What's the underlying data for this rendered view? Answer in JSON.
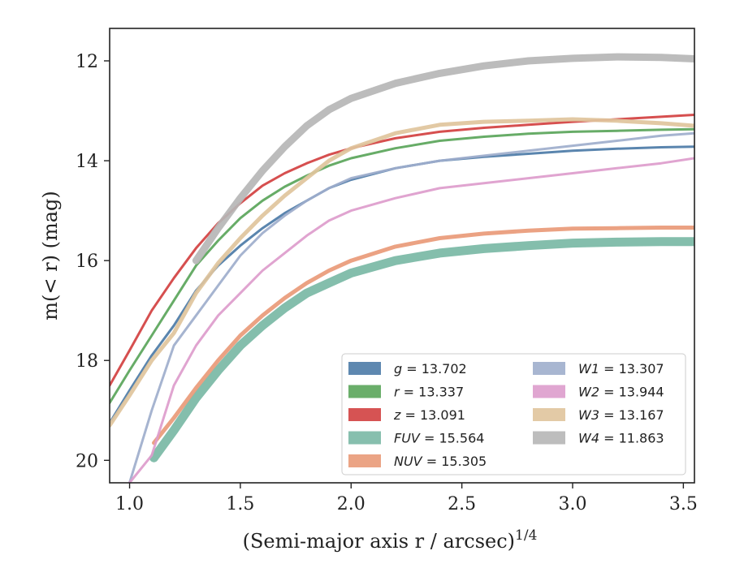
{
  "chart_data": {
    "type": "line",
    "xlabel": "(Semi-major axis r / arcsec)",
    "xlabel_power": "1/4",
    "ylabel": "m(< r) (mag)",
    "xlim": [
      0.91,
      3.55
    ],
    "ylim": [
      20.45,
      11.35
    ],
    "y_inverted": true,
    "x_ticks": [
      1.0,
      1.5,
      2.0,
      2.5,
      3.0,
      3.5
    ],
    "x_tick_labels": [
      "1.0",
      "1.5",
      "2.0",
      "2.5",
      "3.0",
      "3.5"
    ],
    "y_ticks": [
      12,
      14,
      16,
      18,
      20
    ],
    "y_tick_labels": [
      "12",
      "14",
      "16",
      "18",
      "20"
    ],
    "grid": false,
    "legend_position": "lower-right",
    "legend_columns": 2,
    "series": [
      {
        "name": "g",
        "label_value": "13.702",
        "color": "#4c7ba7",
        "width": 3,
        "x": [
          0.91,
          1.0,
          1.1,
          1.2,
          1.3,
          1.4,
          1.5,
          1.6,
          1.7,
          1.8,
          1.9,
          2.0,
          2.2,
          2.4,
          2.6,
          2.8,
          3.0,
          3.2,
          3.4,
          3.55
        ],
        "y": [
          19.25,
          18.6,
          17.9,
          17.3,
          16.6,
          16.1,
          15.7,
          15.35,
          15.05,
          14.8,
          14.55,
          14.38,
          14.15,
          14.0,
          13.92,
          13.86,
          13.8,
          13.76,
          13.73,
          13.72
        ]
      },
      {
        "name": "r",
        "label_value": "13.337",
        "color": "#5aa55a",
        "width": 3,
        "x": [
          0.91,
          1.0,
          1.1,
          1.2,
          1.3,
          1.4,
          1.5,
          1.6,
          1.7,
          1.8,
          1.9,
          2.0,
          2.2,
          2.4,
          2.6,
          2.8,
          3.0,
          3.2,
          3.4,
          3.55
        ],
        "y": [
          18.85,
          18.2,
          17.5,
          16.8,
          16.1,
          15.6,
          15.15,
          14.8,
          14.52,
          14.3,
          14.1,
          13.95,
          13.75,
          13.6,
          13.52,
          13.46,
          13.42,
          13.4,
          13.38,
          13.37
        ]
      },
      {
        "name": "z",
        "label_value": "13.091",
        "color": "#d24040",
        "width": 3,
        "x": [
          0.91,
          1.0,
          1.1,
          1.2,
          1.3,
          1.4,
          1.5,
          1.6,
          1.7,
          1.8,
          1.9,
          2.0,
          2.2,
          2.4,
          2.6,
          2.8,
          3.0,
          3.2,
          3.4,
          3.55
        ],
        "y": [
          18.5,
          17.8,
          17.0,
          16.35,
          15.75,
          15.25,
          14.85,
          14.5,
          14.25,
          14.05,
          13.88,
          13.75,
          13.55,
          13.42,
          13.34,
          13.28,
          13.22,
          13.17,
          13.12,
          13.08
        ]
      },
      {
        "name": "FUV",
        "label_value": "15.564",
        "color": "#7ab8a5",
        "width": 11,
        "x": [
          1.11,
          1.2,
          1.3,
          1.4,
          1.5,
          1.6,
          1.7,
          1.8,
          1.9,
          2.0,
          2.2,
          2.4,
          2.6,
          2.8,
          3.0,
          3.2,
          3.4,
          3.55
        ],
        "y": [
          19.95,
          19.4,
          18.75,
          18.2,
          17.7,
          17.3,
          16.95,
          16.65,
          16.45,
          16.25,
          16.0,
          15.85,
          15.76,
          15.7,
          15.65,
          15.63,
          15.62,
          15.62
        ]
      },
      {
        "name": "NUV",
        "label_value": "15.305",
        "color": "#e99a78",
        "width": 5,
        "x": [
          1.11,
          1.2,
          1.3,
          1.4,
          1.5,
          1.6,
          1.7,
          1.8,
          1.9,
          2.0,
          2.2,
          2.4,
          2.6,
          2.8,
          3.0,
          3.2,
          3.4,
          3.55
        ],
        "y": [
          19.65,
          19.15,
          18.55,
          18.0,
          17.5,
          17.1,
          16.75,
          16.45,
          16.2,
          16.0,
          15.72,
          15.55,
          15.46,
          15.4,
          15.36,
          15.35,
          15.34,
          15.34
        ]
      },
      {
        "name": "W1",
        "label_value": "13.307",
        "color": "#9eaecc",
        "width": 3,
        "x": [
          1.0,
          1.1,
          1.2,
          1.3,
          1.4,
          1.5,
          1.6,
          1.7,
          1.8,
          1.9,
          2.0,
          2.2,
          2.4,
          2.6,
          2.8,
          3.0,
          3.2,
          3.4,
          3.55
        ],
        "y": [
          20.45,
          19.0,
          17.7,
          17.1,
          16.5,
          15.9,
          15.45,
          15.1,
          14.8,
          14.55,
          14.35,
          14.15,
          14.0,
          13.9,
          13.8,
          13.7,
          13.6,
          13.5,
          13.45
        ]
      },
      {
        "name": "W2",
        "label_value": "13.944",
        "color": "#dd9ccc",
        "width": 3,
        "x": [
          1.0,
          1.1,
          1.2,
          1.3,
          1.4,
          1.5,
          1.6,
          1.7,
          1.8,
          1.9,
          2.0,
          2.2,
          2.4,
          2.6,
          2.8,
          3.0,
          3.2,
          3.4,
          3.55
        ],
        "y": [
          20.45,
          19.9,
          18.5,
          17.7,
          17.1,
          16.65,
          16.2,
          15.85,
          15.5,
          15.2,
          15.0,
          14.75,
          14.55,
          14.45,
          14.35,
          14.25,
          14.15,
          14.05,
          13.95
        ]
      },
      {
        "name": "W3",
        "label_value": "13.167",
        "color": "#e0c49c",
        "width": 5,
        "x": [
          0.91,
          1.0,
          1.1,
          1.2,
          1.3,
          1.4,
          1.5,
          1.6,
          1.7,
          1.8,
          1.9,
          2.0,
          2.2,
          2.4,
          2.6,
          2.8,
          3.0,
          3.2,
          3.4,
          3.55
        ],
        "y": [
          19.3,
          18.7,
          18.0,
          17.45,
          16.65,
          16.05,
          15.55,
          15.1,
          14.7,
          14.35,
          14.0,
          13.75,
          13.45,
          13.28,
          13.22,
          13.2,
          13.17,
          13.2,
          13.25,
          13.3
        ]
      },
      {
        "name": "W4",
        "label_value": "11.863",
        "color": "#b6b6b6",
        "width": 9,
        "x": [
          1.3,
          1.4,
          1.5,
          1.6,
          1.7,
          1.8,
          1.9,
          2.0,
          2.2,
          2.4,
          2.6,
          2.8,
          3.0,
          3.2,
          3.4,
          3.55
        ],
        "y": [
          16.0,
          15.35,
          14.75,
          14.2,
          13.72,
          13.3,
          12.98,
          12.75,
          12.45,
          12.25,
          12.1,
          12.0,
          11.95,
          11.92,
          11.93,
          11.96
        ]
      }
    ]
  }
}
